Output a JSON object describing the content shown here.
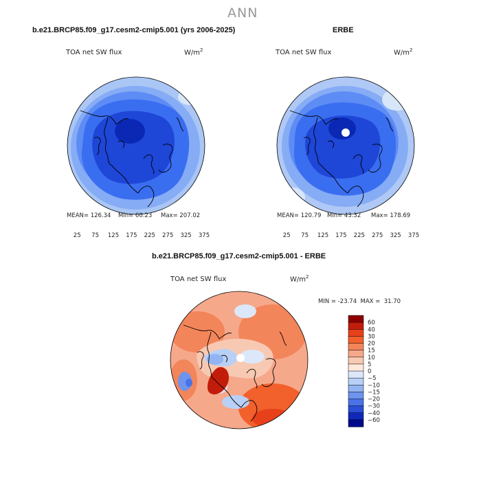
{
  "page_title": "ANN",
  "colors": {
    "ocean_low": "#1a3fd6",
    "ocean_mid": "#3a6af0",
    "ocean_light": "#a9c6f5",
    "diff_warm": "#f29577",
    "diff_cool": "#aec7f2",
    "coast": "#000000"
  },
  "panels": [
    {
      "header": "b.e21.BRCP85.f09_g17.cesm2-cmip5.001 (yrs 2006-2025)",
      "variable": "TOA net SW flux",
      "unit_base": "W/m",
      "unit_exp": "2",
      "stats": {
        "mean": "MEAN= 126.34",
        "min": "Min= 60.23",
        "max": "Max= 207.02"
      }
    },
    {
      "header": "ERBE",
      "variable": "TOA net SW flux",
      "unit_base": "W/m",
      "unit_exp": "2",
      "stats": {
        "mean": "MEAN= 120.79",
        "min": "Min= 43.32",
        "max": "Max= 178.69"
      }
    }
  ],
  "abs_colorbar": {
    "colors": [
      "#000a8c",
      "#0a28b4",
      "#1e46d7",
      "#3a6ef0",
      "#5e8cf5",
      "#86acf5",
      "#afc8f5",
      "#d8e6fa",
      "#fde8dc",
      "#f8c4ac",
      "#f39a7c",
      "#ea6c4e",
      "#d8402e",
      "#b81c18",
      "#8a0606"
    ],
    "labels": [
      "25",
      "75",
      "125",
      "175",
      "225",
      "275",
      "325",
      "375"
    ]
  },
  "diff_panel": {
    "header": "b.e21.BRCP85.f09_g17.cesm2-cmip5.001 - ERBE",
    "variable": "TOA net SW flux",
    "unit_base": "W/m",
    "unit_exp": "2",
    "minmax": "MIN = -23.74  MAX =  31.70"
  },
  "diff_colorbar": {
    "colors": [
      "#8c0000",
      "#c21c0a",
      "#e8401a",
      "#f2602c",
      "#f3855a",
      "#f6a88a",
      "#f8c9b2",
      "#fde8dc",
      "#dce8fa",
      "#b8d0f6",
      "#92b4f2",
      "#6e94ee",
      "#4a72e8",
      "#2a4ed8",
      "#1028b8",
      "#000a8c"
    ],
    "labels": [
      "60",
      "40",
      "30",
      "20",
      "15",
      "10",
      "5",
      "0",
      "−5",
      "−10",
      "−15",
      "−20",
      "−30",
      "−40",
      "−60"
    ]
  }
}
